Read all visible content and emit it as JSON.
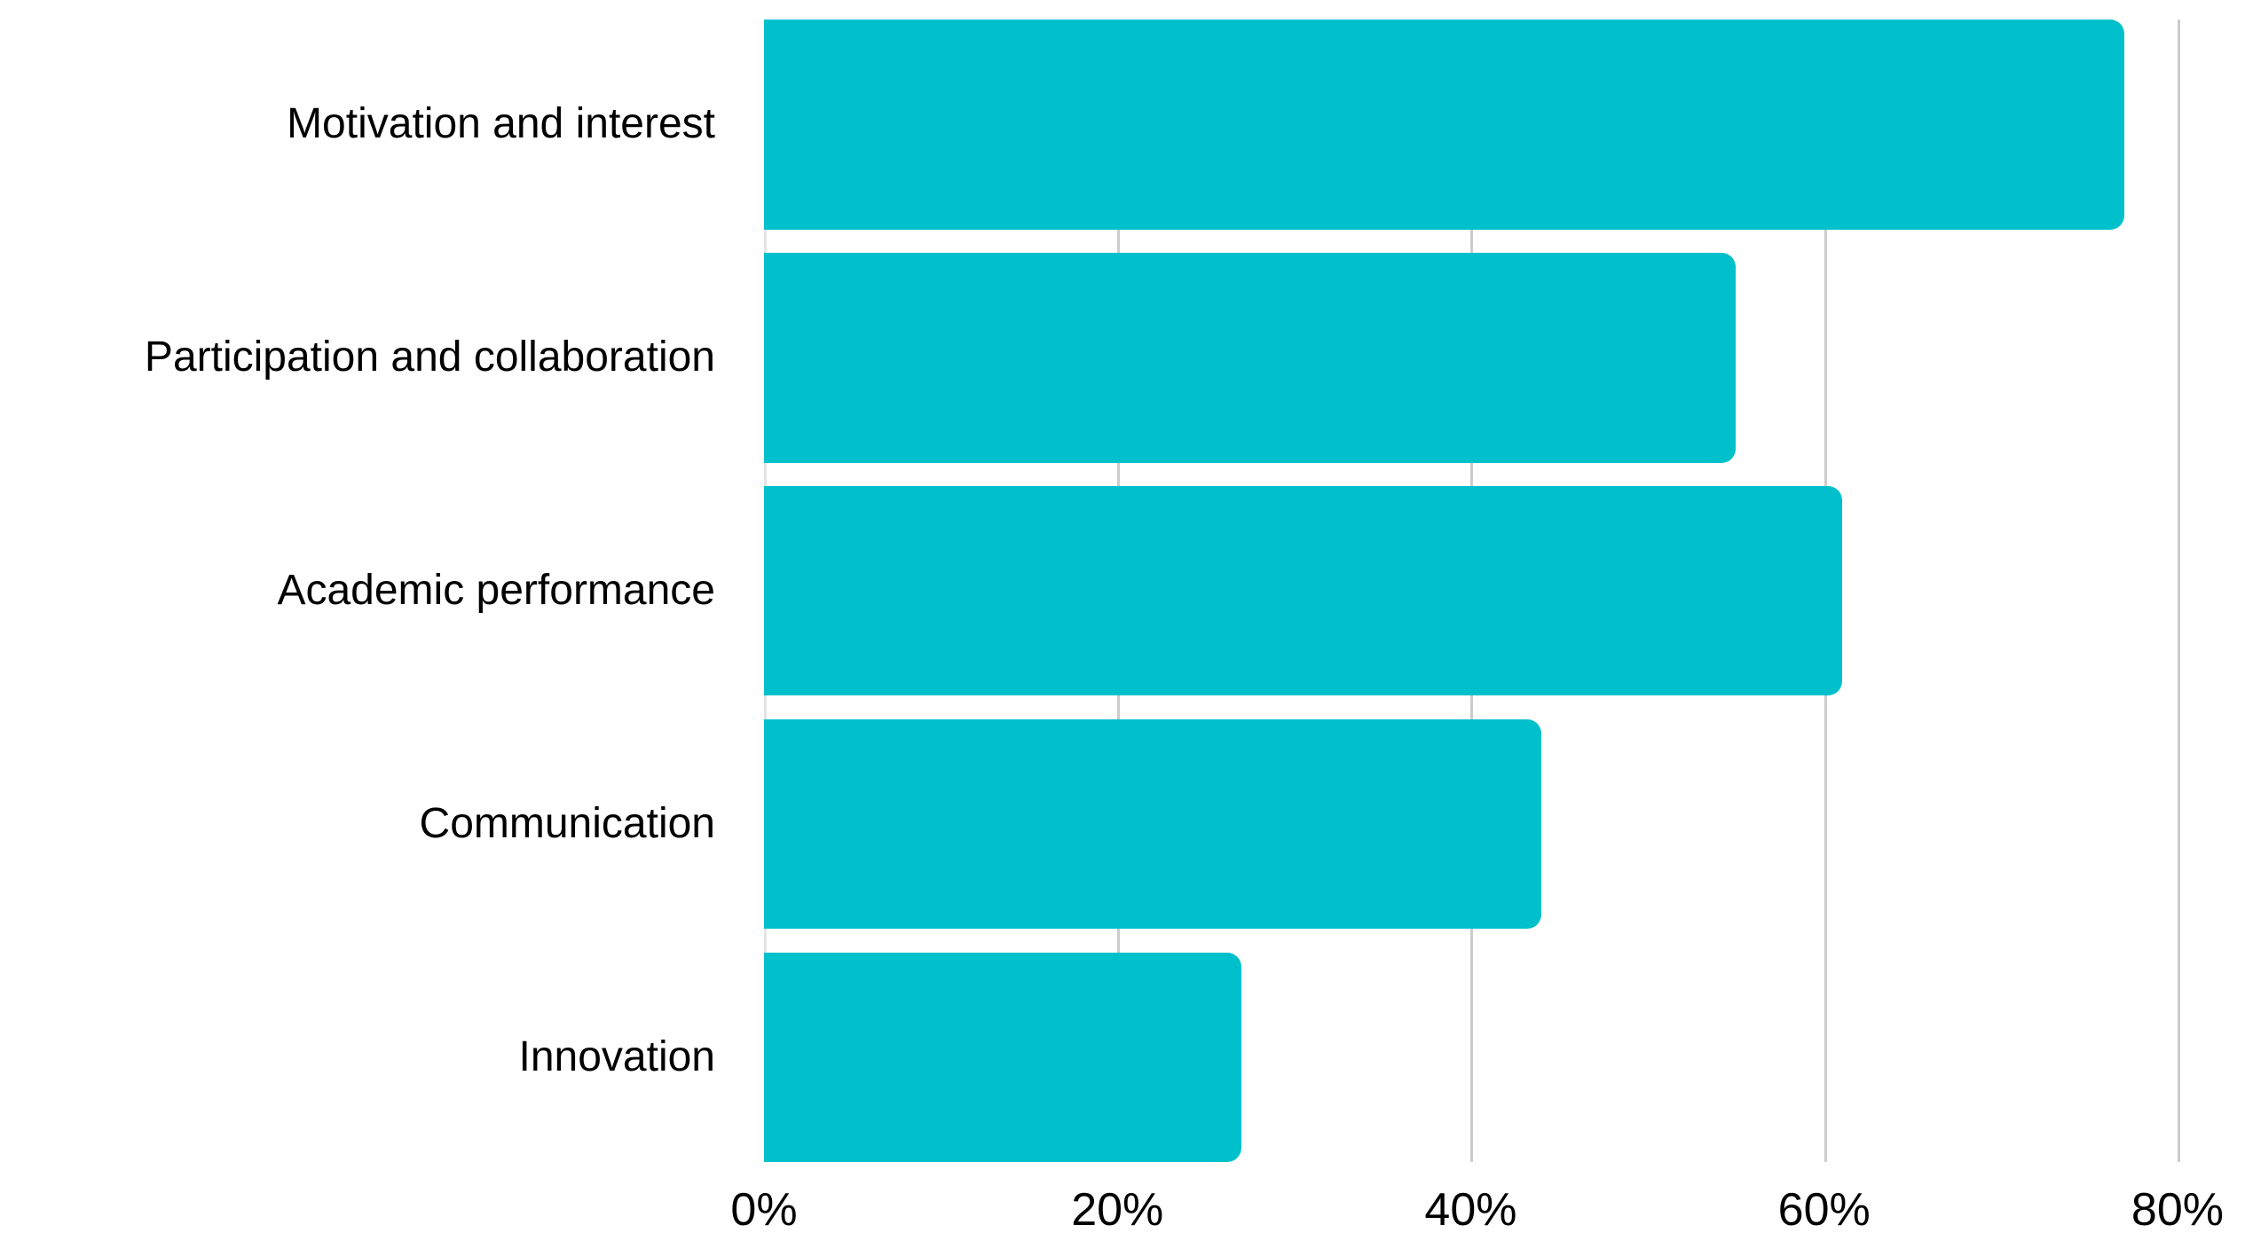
{
  "chart_data": {
    "type": "bar",
    "orientation": "horizontal",
    "title": "",
    "xlabel": "",
    "ylabel": "",
    "categories": [
      "Motivation and interest",
      "Participation and collaboration",
      "Academic performance",
      "Communication",
      "Innovation"
    ],
    "values": [
      77,
      55,
      61,
      44,
      27
    ],
    "unit": "%",
    "xlim": [
      0,
      84
    ],
    "x_tick_values": [
      0,
      20,
      40,
      60,
      80
    ],
    "x_tick_labels": [
      "0%",
      "20%",
      "40%",
      "60%",
      "80%"
    ],
    "grid": "vertical-gridlines-on",
    "legend_position": "none",
    "colors": {
      "bar": "#00c0cc",
      "gridline": "#cccccc",
      "zero_line": "#e4e4e4",
      "text": "#000000",
      "background": "#ffffff"
    }
  }
}
